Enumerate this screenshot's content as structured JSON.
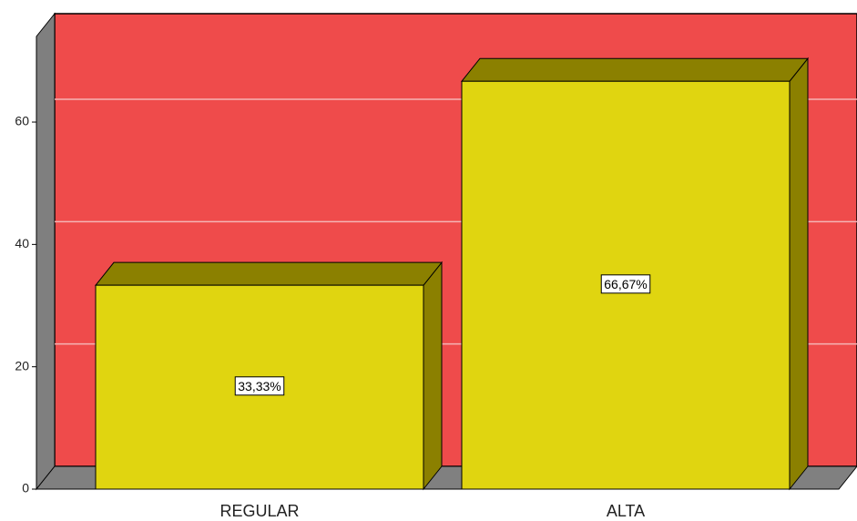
{
  "chart_data": {
    "type": "bar",
    "categories": [
      "REGULAR",
      "ALTA"
    ],
    "values": [
      33.33,
      66.67
    ],
    "value_labels": [
      "33,33%",
      "66,67%"
    ],
    "color": "#e0d510",
    "ylim": [
      0,
      74
    ],
    "yticks": [
      0,
      20,
      40,
      60
    ],
    "grid": true
  }
}
